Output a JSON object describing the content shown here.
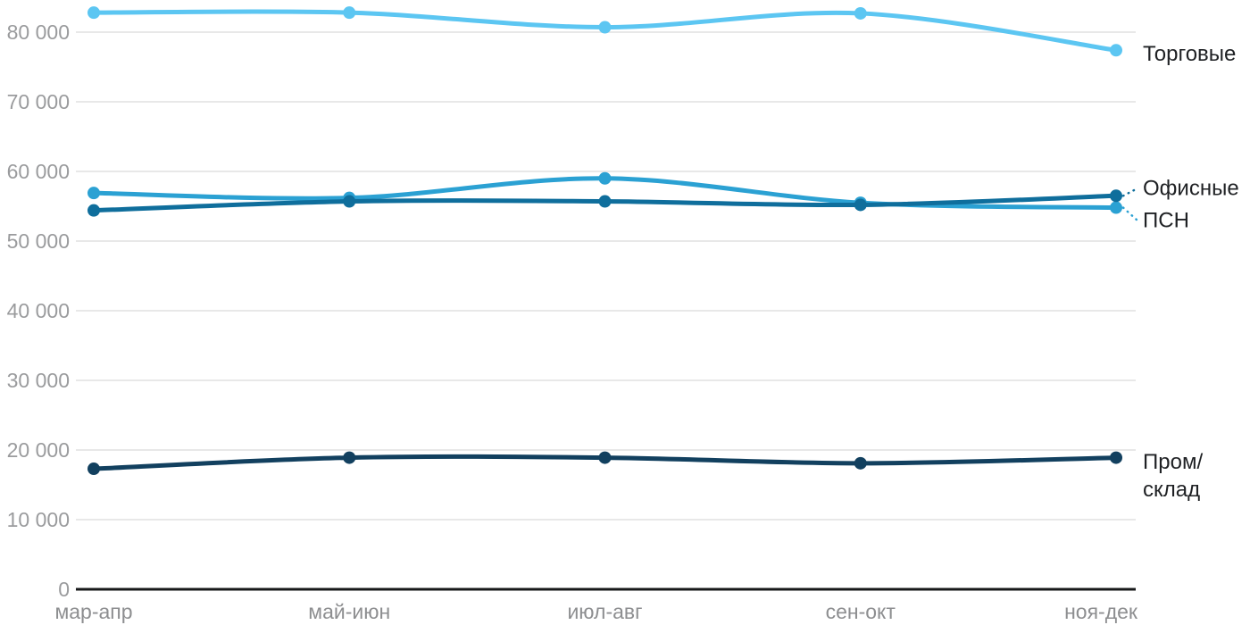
{
  "chart_data": {
    "type": "line",
    "title": "",
    "xlabel": "",
    "ylabel": "",
    "categories": [
      "мар-апр",
      "май-июн",
      "июл-авг",
      "сен-окт",
      "ноя-дек"
    ],
    "series": [
      {
        "name": "Торговые",
        "color": "#5cc6f2",
        "values": [
          82800,
          82800,
          80700,
          82700,
          77400
        ],
        "label_lines": [
          "Торговые"
        ]
      },
      {
        "name": "ПСН",
        "color": "#2ba1d3",
        "values": [
          56900,
          56200,
          59000,
          55500,
          54800
        ],
        "label_lines": [
          "ПСН"
        ]
      },
      {
        "name": "Офисные",
        "color": "#0f6e9c",
        "values": [
          54400,
          55700,
          55700,
          55200,
          56500
        ],
        "label_lines": [
          "Офисные"
        ]
      },
      {
        "name": "Пром/склад",
        "color": "#12405f",
        "values": [
          17300,
          18900,
          18900,
          18100,
          18900
        ],
        "label_lines": [
          "Пром/",
          "склад"
        ]
      }
    ],
    "ylim": [
      0,
      85000
    ],
    "yticks": [
      0,
      10000,
      20000,
      30000,
      40000,
      50000,
      60000,
      70000,
      80000
    ],
    "ytick_labels": [
      "0",
      "10 000",
      "20 000",
      "30 000",
      "40 000",
      "50 000",
      "60 000",
      "70 000",
      "80 000"
    ],
    "grid": true,
    "legend_position": "right-inline",
    "colors": {
      "gridline": "#e8e8e8",
      "axis": "#17181a",
      "ytick_text": "#9a9b9d",
      "xtick_text": "#8d8e90",
      "label_text": "#1f2124",
      "background": "#ffffff"
    }
  }
}
